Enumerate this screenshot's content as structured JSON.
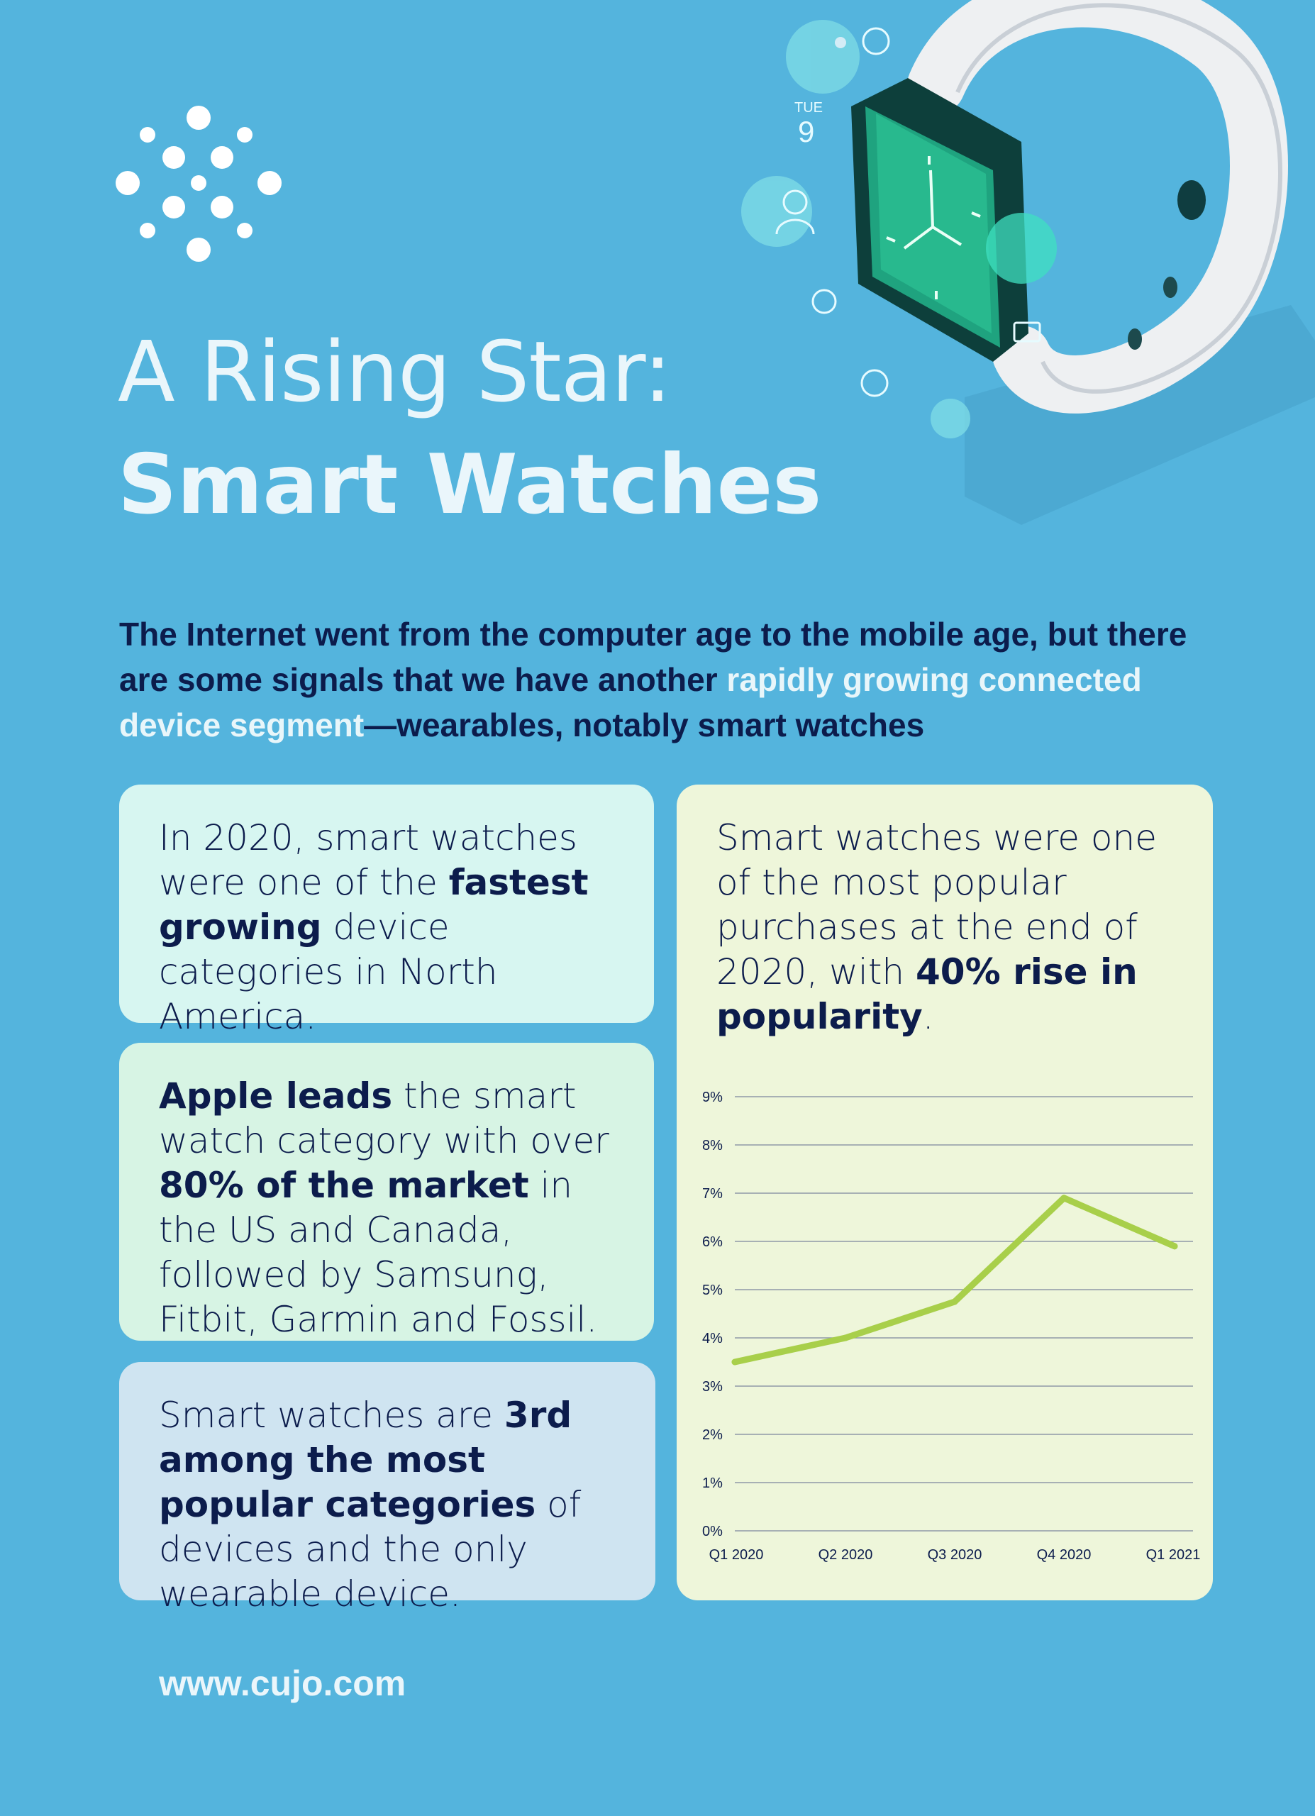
{
  "title": {
    "line1": "A Rising Star:",
    "line2": "Smart Watches"
  },
  "intro": {
    "part1": "The Internet went from the computer age to the mobile age, but there are some signals that we have another ",
    "highlight": "rapidly growing connected device segment",
    "part2": "—wearables, notably smart watches"
  },
  "cards": {
    "card1": {
      "t1": "In 2020, smart watches were one of the ",
      "b1": "fastest growing",
      "t2": " device categories in North America."
    },
    "card2": {
      "b1": "Apple leads",
      "t1": " the smart watch category with over ",
      "b2": "80% of the market",
      "t2": " in the US and Canada, followed by Samsung, Fitbit, Garmin and Fossil."
    },
    "card3": {
      "t1": "Smart watches are ",
      "b1": "3rd among the most popular categories",
      "t2": " of devices and the only wearable device."
    },
    "card4": {
      "t1": "Smart watches were one of the most popular purchases at the end of 2020, with ",
      "b1": "40% rise in popularity",
      "t2": "."
    }
  },
  "watch_icons": {
    "day_label": "TUE",
    "day_number": "9"
  },
  "colors": {
    "background": "#54b4dd",
    "line": "#a8cf4a",
    "text_dark": "#0c1c4c",
    "text_light": "#eaf6fb"
  },
  "chart_data": {
    "type": "line",
    "categories": [
      "Q1 2020",
      "Q2 2020",
      "Q3 2020",
      "Q4 2020",
      "Q1 2021"
    ],
    "series": [
      {
        "values": [
          3.5,
          4.0,
          4.75,
          6.9,
          5.9
        ]
      }
    ],
    "ylim": [
      0,
      9
    ],
    "yticks": [
      "0%",
      "1%",
      "2%",
      "3%",
      "4%",
      "5%",
      "6%",
      "7%",
      "8%",
      "9%"
    ],
    "grid": true,
    "title": "",
    "xlabel": "",
    "ylabel": ""
  },
  "footer": {
    "url": "www.cujo.com"
  }
}
